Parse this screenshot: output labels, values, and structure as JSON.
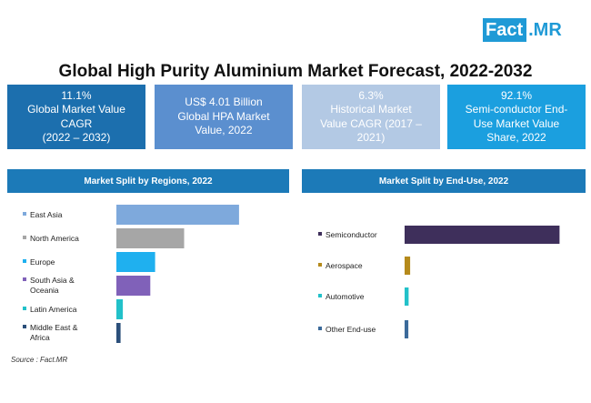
{
  "logo": {
    "part1": "Fact",
    "part2": ".MR"
  },
  "title": "Global High Purity Aluminium Market Forecast, 2022-2032",
  "kpis": [
    {
      "lines": [
        "11.1%",
        "Global Market Value",
        "CAGR",
        "(2022 – 2032)"
      ]
    },
    {
      "lines": [
        "US$ 4.01 Billion",
        "Global HPA Market",
        "Value, 2022"
      ]
    },
    {
      "lines": [
        "6.3%",
        "Historical Market",
        "Value CAGR (2017 –",
        "2021)"
      ]
    },
    {
      "lines": [
        "92.1%",
        "Semi-conductor End-",
        "Use Market Value",
        "Share, 2022"
      ]
    }
  ],
  "source": "Source : Fact.MR",
  "chart_data": [
    {
      "type": "bar",
      "orientation": "horizontal",
      "title": "Market Split by Regions, 2022",
      "categories": [
        [
          "East Asia"
        ],
        [
          "North America"
        ],
        [
          "Europe"
        ],
        [
          "South Asia &",
          "Oceania"
        ],
        [
          "Latin America"
        ],
        [
          "Middle East &",
          "Africa"
        ]
      ],
      "values": [
        38,
        21,
        12,
        10.5,
        2,
        1.3
      ],
      "colors": [
        "#7ea9dc",
        "#a6a6a6",
        "#1fb0ef",
        "#8061b9",
        "#22c1c9",
        "#2b4f7a"
      ],
      "xlim": [
        0,
        100
      ]
    },
    {
      "type": "bar",
      "orientation": "horizontal",
      "title": "Market Split by End-Use, 2022",
      "categories": [
        [
          "Semiconductor"
        ],
        [
          "Aerospace"
        ],
        [
          "Automotive"
        ],
        [
          "Other End-use"
        ]
      ],
      "values": [
        92.1,
        3.3,
        2.4,
        2.2
      ],
      "colors": [
        "#3e2f5b",
        "#b58a1b",
        "#22c1c9",
        "#3b6a9a"
      ],
      "xlim": [
        0,
        100
      ]
    }
  ]
}
